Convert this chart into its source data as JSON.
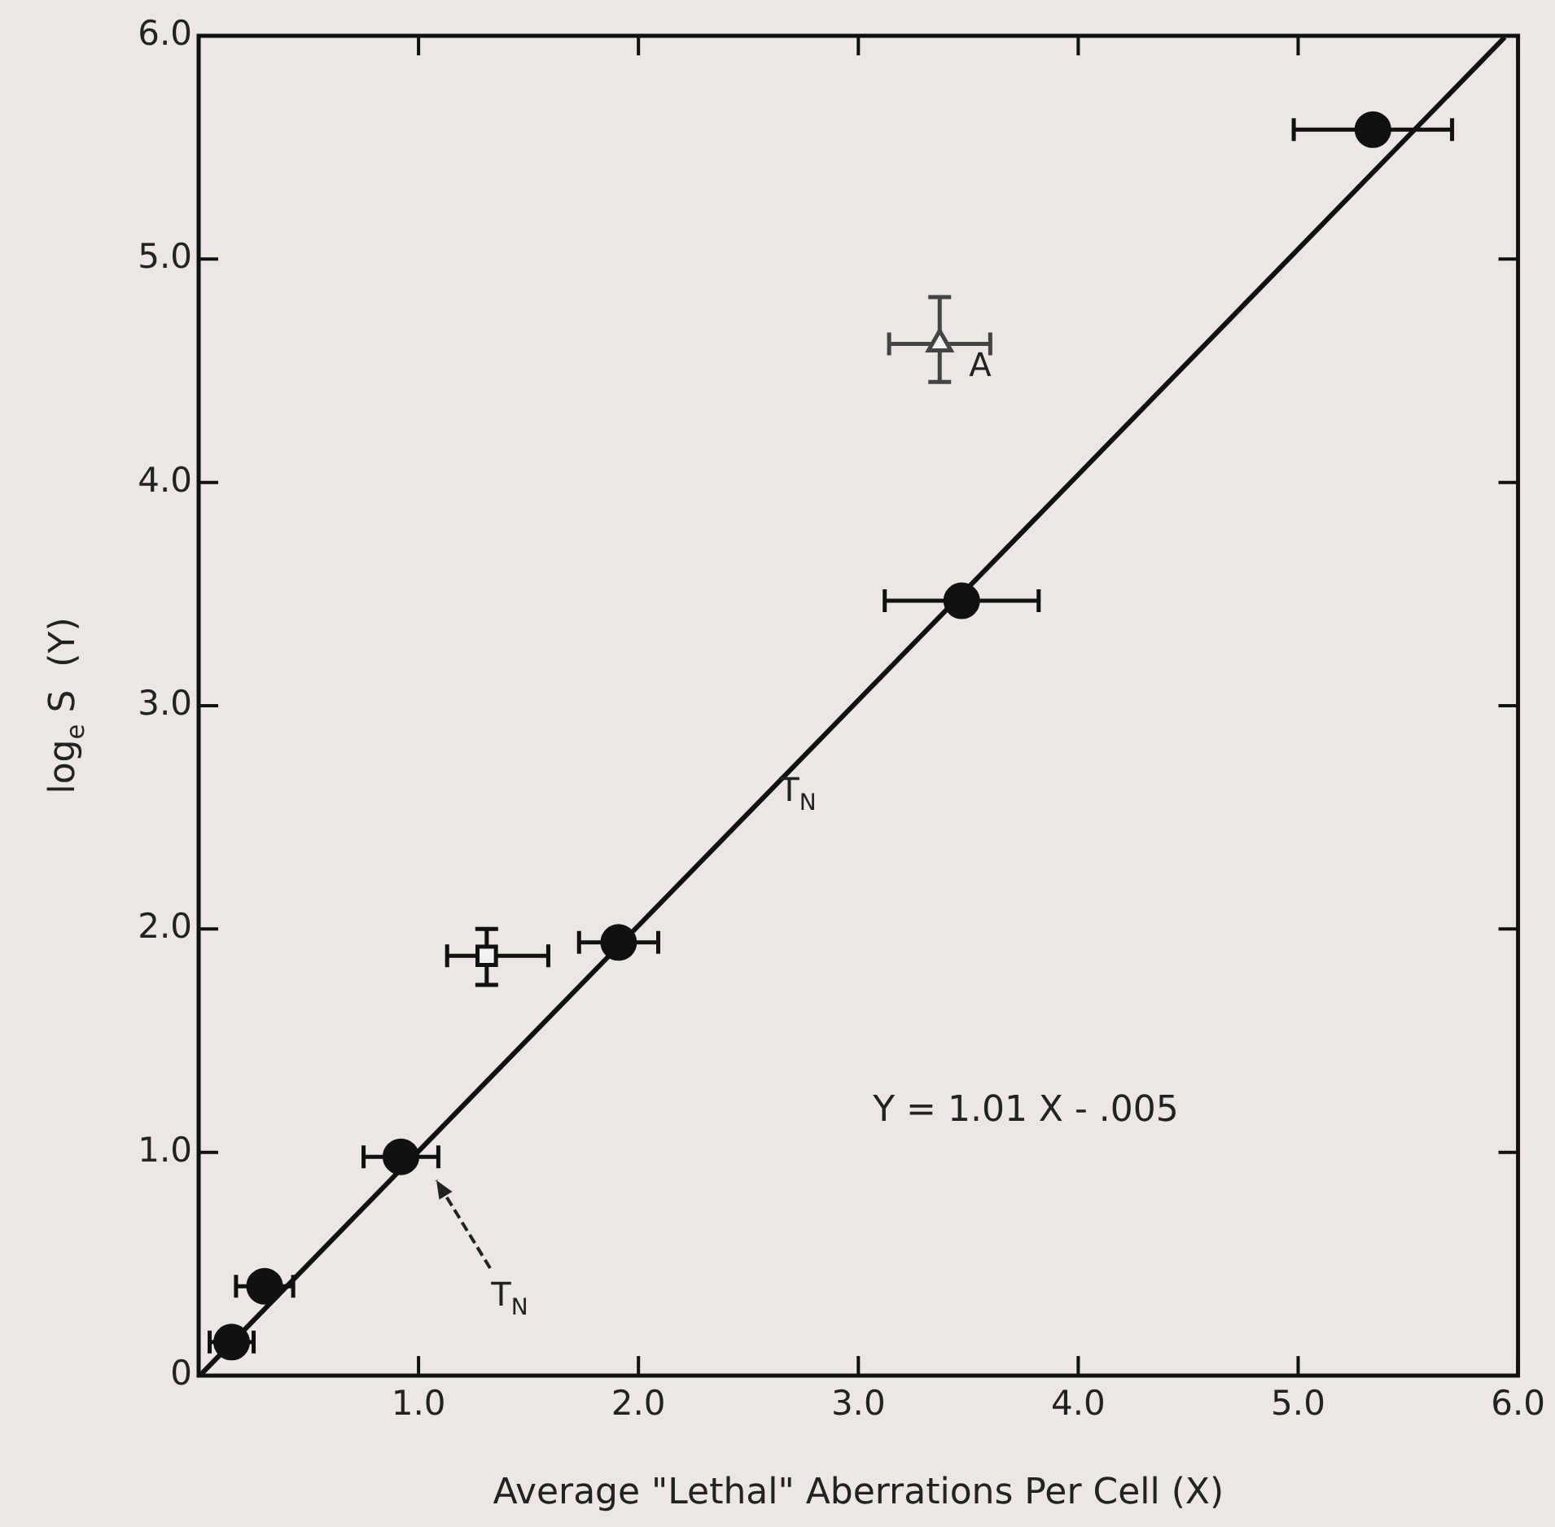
{
  "chart_data": {
    "type": "scatter",
    "xlabel": "Average \"Lethal\" Aberrations Per Cell (X)",
    "ylabel": "log$_{e}$ S  (Y)",
    "xlim": [
      0,
      6
    ],
    "ylim": [
      0,
      6
    ],
    "xticks": [
      {
        "value": 0,
        "label": null
      },
      {
        "value": 1,
        "label": "1.0"
      },
      {
        "value": 2,
        "label": "2.0"
      },
      {
        "value": 3,
        "label": "3.0"
      },
      {
        "value": 4,
        "label": "4.0"
      },
      {
        "value": 5,
        "label": "5.0"
      },
      {
        "value": 6,
        "label": "6.0"
      }
    ],
    "yticks": [
      0,
      {
        "value": 1,
        "label": "1.0"
      },
      {
        "value": 2,
        "label": "2.0"
      },
      {
        "value": 3,
        "label": "3.0"
      },
      {
        "value": 4,
        "label": "4.0"
      },
      {
        "value": 5,
        "label": "5.0"
      },
      {
        "value": 6,
        "label": "6.0"
      }
    ],
    "grid": false,
    "legend": false,
    "line_style": "solid",
    "series": [
      {
        "type": "scatter",
        "marker": "circle",
        "color": "#111111",
        "x": [
          0.15,
          0.3,
          0.92,
          1.91,
          3.47,
          5.34
        ],
        "values": [
          0.15,
          0.4,
          0.98,
          1.94,
          3.47,
          5.58
        ],
        "xerrors": [
          0.1,
          0.13,
          0.17,
          0.18,
          0.35,
          0.36
        ]
      },
      {
        "type": "scatter",
        "marker": "square",
        "color": "#111111",
        "x": [
          1.31
        ],
        "values": [
          1.88
        ],
        "xerrors": [
          [
            1.13,
            1.59
          ]
        ],
        "errors": [
          [
            1.75,
            2.0
          ]
        ]
      },
      {
        "type": "scatter",
        "marker": "triangle",
        "color": "#444444",
        "x": [
          3.37
        ],
        "values": [
          4.62
        ],
        "xerrors": [
          [
            3.14,
            3.6
          ]
        ],
        "errors": [
          [
            4.45,
            4.83
          ]
        ]
      },
      {
        "type": "line",
        "color": "#111111",
        "x": [
          0.01,
          5.94
        ],
        "values": [
          0.005,
          5.994
        ]
      }
    ],
    "annotations": [
      "T$_{N}$",
      "T$_{N}$",
      "A",
      "Y = 1.01 X - .005"
    ]
  }
}
